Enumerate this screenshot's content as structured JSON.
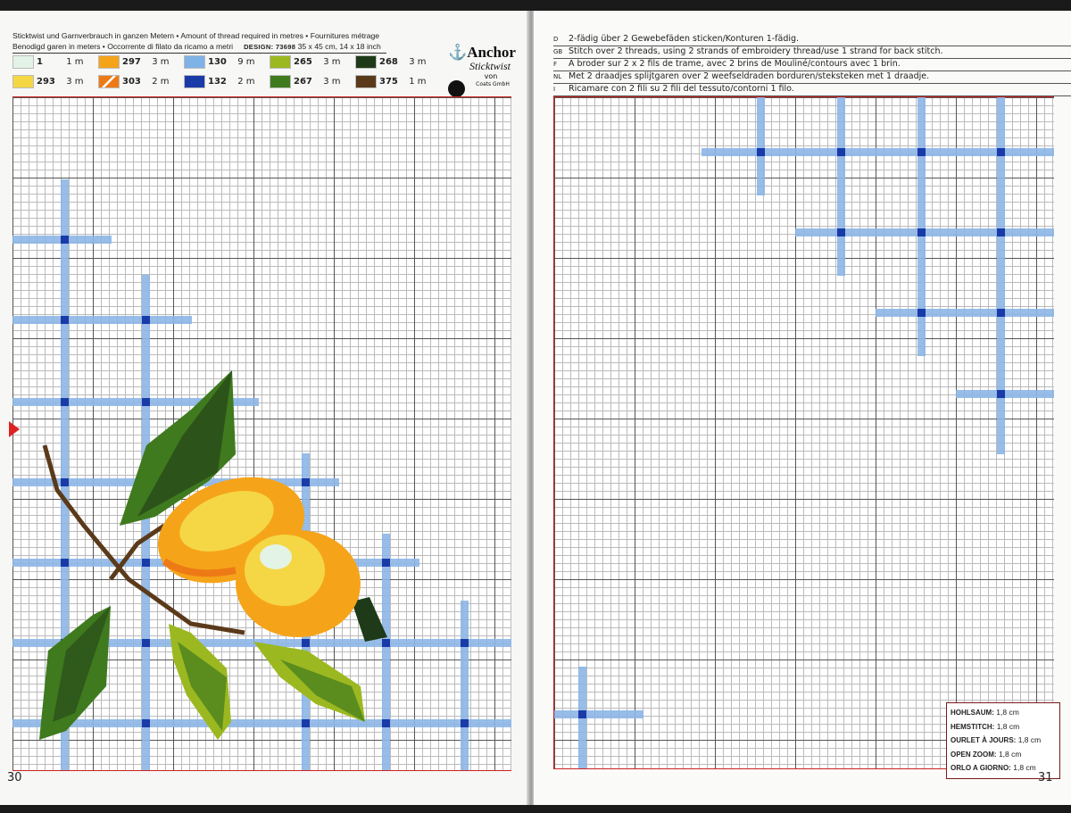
{
  "left_page": {
    "header_line1": "Sticktwist und Garnverbrauch in ganzen Metern • Amount of thread required in metres • Fournitures métrage",
    "header_line2": "Benodigd garen in meters • Occorrente di filato da ricamo a metri",
    "design": "DESIGN: 73698",
    "size": "35 x 45 cm, 14 x 18 inch",
    "legend": [
      {
        "number": "1",
        "amount": "1 m",
        "color": "#e3f3e6"
      },
      {
        "number": "293",
        "amount": "3 m",
        "color": "#f5d745"
      },
      {
        "number": "297",
        "amount": "3 m",
        "color": "#f5a41a"
      },
      {
        "number": "303",
        "amount": "2 m",
        "color": "#ee7a16"
      },
      {
        "number": "130",
        "amount": "9 m",
        "color": "#7fb2e6"
      },
      {
        "number": "132",
        "amount": "2 m",
        "color": "#1a3aa8"
      },
      {
        "number": "265",
        "amount": "3 m",
        "color": "#9cb820"
      },
      {
        "number": "267",
        "amount": "3 m",
        "color": "#3f7a1e"
      },
      {
        "number": "268",
        "amount": "3 m",
        "color": "#1f3a18"
      },
      {
        "number": "375",
        "amount": "1 m",
        "color": "#5a3a1a"
      }
    ],
    "logo": {
      "brand": "Anchor",
      "product": "Sticktwist",
      "von": "von",
      "company": "Coats GmbH"
    },
    "page_number": "30"
  },
  "right_page": {
    "instructions": [
      {
        "code": "D",
        "text": "2-fädig über 2 Gewebefäden sticken/Konturen 1-fädig."
      },
      {
        "code": "GB",
        "text": "Stitch over 2 threads, using 2 strands of embroidery thread/use 1 strand for back stitch."
      },
      {
        "code": "F",
        "text": "A broder sur 2 x 2 fils de trame, avec 2 brins de Mouliné/contours avec 1 brin."
      },
      {
        "code": "NL",
        "text": "Met 2 draadjes splijtgaren over 2 weefseldraden borduren/steksteken met 1 draadje."
      },
      {
        "code": "I",
        "text": "Ricamare con 2 fili su 2 fili del tessuto/contorni 1 filo."
      }
    ],
    "hemstitch_box": [
      {
        "label": "HOHLSAUM:",
        "value": "1,8 cm"
      },
      {
        "label": "HEMSTITCH:",
        "value": "1,8 cm"
      },
      {
        "label": "OURLET À JOURS:",
        "value": "1,8 cm"
      },
      {
        "label": "OPEN ZOOM:",
        "value": "1,8 cm"
      },
      {
        "label": "ORLO A GIORNO:",
        "value": "1,8 cm"
      }
    ],
    "page_number": "31"
  },
  "colors": {
    "lattice": "#8cb6e6",
    "lattice_cross": "#1a3aa8",
    "border": "#cc2222"
  }
}
